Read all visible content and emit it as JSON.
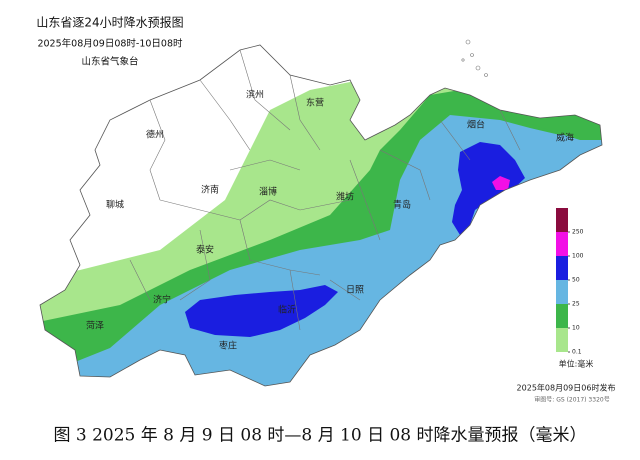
{
  "header": {
    "title": "山东省逐24小时降水预报图",
    "subtitle": "2025年08月09日08时-10日08时",
    "issuer": "山东省气象台"
  },
  "cities": [
    "滨州",
    "东营",
    "德州",
    "烟台",
    "威海",
    "济南",
    "淄博",
    "潍坊",
    "青岛",
    "聊城",
    "泰安",
    "日照",
    "济宁",
    "菏泽",
    "临沂",
    "枣庄"
  ],
  "legend": {
    "levels": [
      0.1,
      10,
      25,
      50,
      100,
      250
    ],
    "colors": [
      "#a8e68c",
      "#3db64a",
      "#66b6e2",
      "#1a1ee0",
      "#f20fe6",
      "#8a0b3e"
    ],
    "unit": "单位:毫米"
  },
  "footer": {
    "issued": "2025年08月09日06时发布",
    "approval": "审图号: GS (2017) 3320号"
  },
  "caption": "图 3 2025 年 8 月 9 日 08 时—8 月 10 日 08 时降水量预报（毫米）"
}
